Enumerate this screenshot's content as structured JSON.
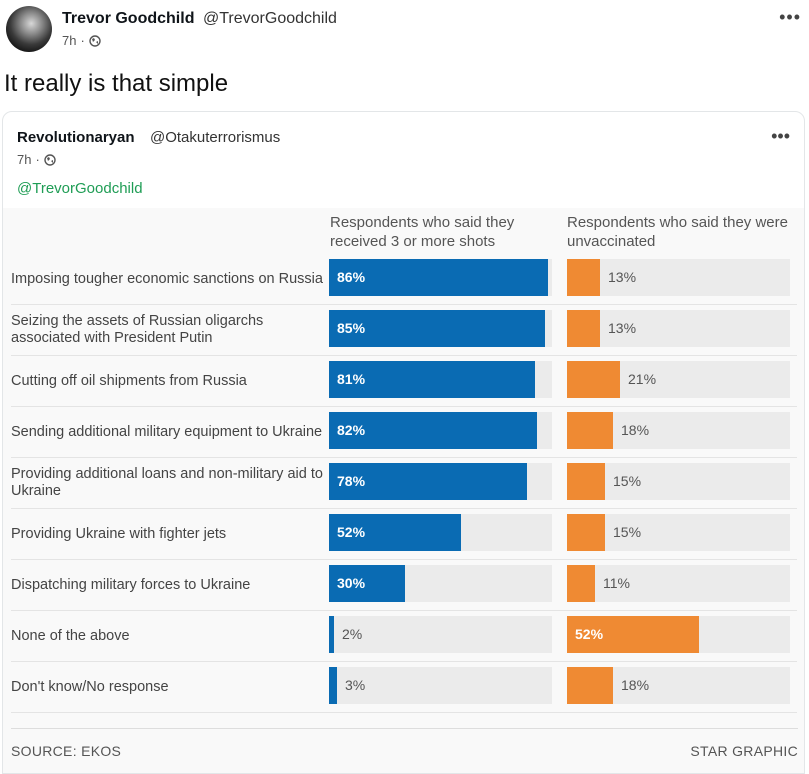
{
  "post": {
    "author_name": "Trevor Goodchild",
    "author_handle": "@TrevorGoodchild",
    "time": "7h",
    "separator": "·",
    "text": "It really is that simple",
    "more": "•••"
  },
  "quoted_post": {
    "author_name": "Revolutionaryan",
    "author_handle": "@Otakuterrorismus",
    "time": "7h",
    "separator": "·",
    "mention": "@TrevorGoodchild",
    "more": "•••"
  },
  "colors": {
    "vaccinated": "#0a6bb3",
    "unvaccinated": "#ef8a33",
    "track": "#ebebeb"
  },
  "chart_data": {
    "type": "bar",
    "series": [
      {
        "name": "Respondents who said they received 3 or more shots",
        "values": [
          86,
          85,
          81,
          82,
          78,
          52,
          30,
          2,
          3
        ]
      },
      {
        "name": "Respondents who said they were unvaccinated",
        "values": [
          13,
          13,
          21,
          18,
          15,
          15,
          11,
          52,
          18
        ]
      }
    ],
    "categories": [
      "Imposing tougher economic sanctions on Russia",
      "Seizing the assets of Russian oligarchs associated with President Putin",
      "Cutting off oil shipments from Russia",
      "Sending additional military equipment to Ukraine",
      "Providing additional loans and non-military aid to Ukraine",
      "Providing Ukraine with fighter jets",
      "Dispatching military forces to Ukraine",
      "None of the above",
      "Don't know/No response"
    ],
    "vax_labels": [
      "86%",
      "85%",
      "81%",
      "82%",
      "78%",
      "52%",
      "30%",
      "2%",
      "3%"
    ],
    "unvax_labels": [
      "13%",
      "13%",
      "21%",
      "18%",
      "15%",
      "15%",
      "11%",
      "52%",
      "18%"
    ],
    "ylim": [
      0,
      100
    ],
    "source": "SOURCE: EKOS",
    "credit": "STAR GRAPHIC"
  }
}
